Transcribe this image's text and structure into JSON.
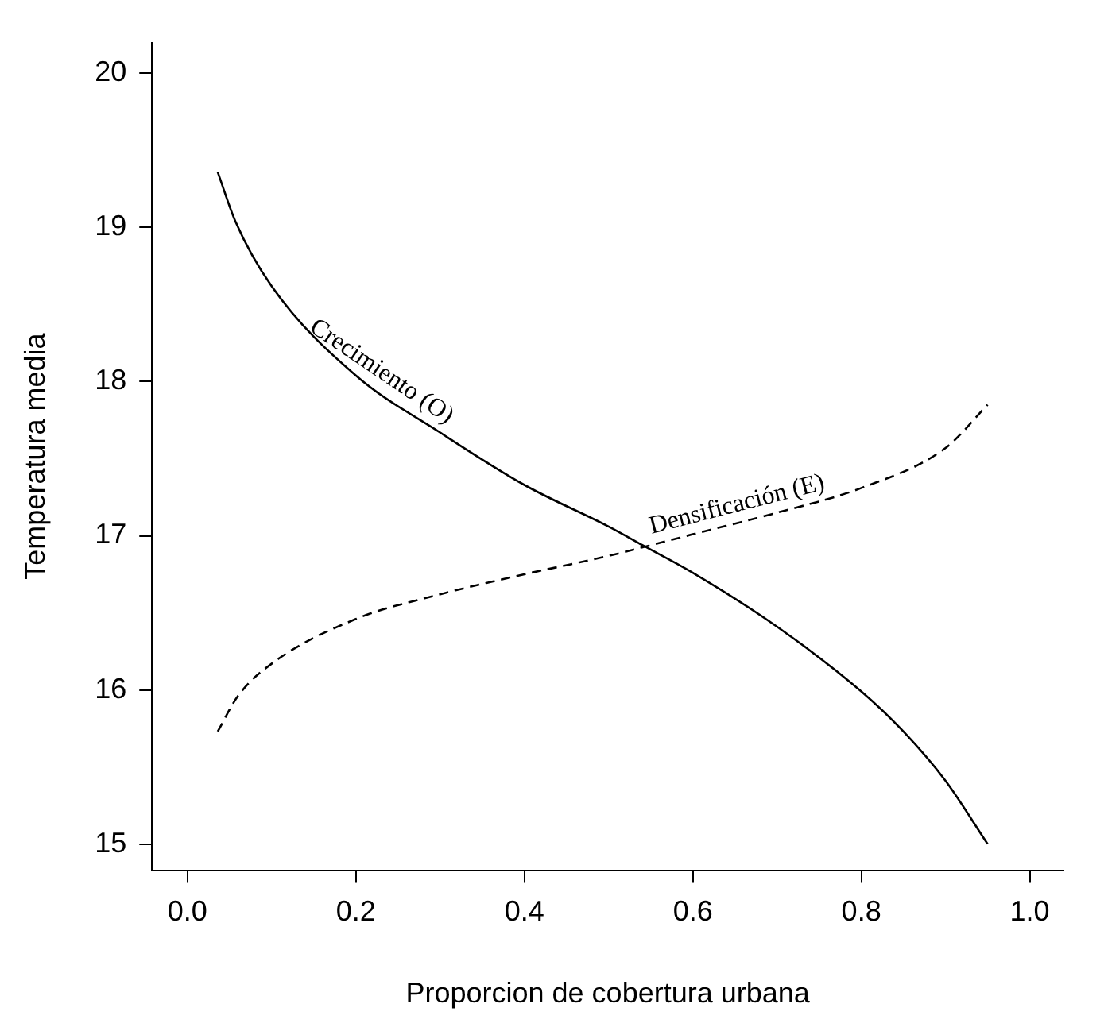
{
  "chart_data": {
    "type": "line",
    "xlabel": "Proporcion de cobertura urbana",
    "ylabel": "Temperatura media",
    "xlim": [
      -0.042,
      1.04
    ],
    "ylim": [
      14.83,
      20.2
    ],
    "xticks": [
      {
        "value": 0,
        "label": "0.0"
      },
      0.2,
      0.4,
      0.6,
      0.8,
      {
        "value": 1,
        "label": "1.0"
      }
    ],
    "yticks": [
      15,
      16,
      17,
      18,
      19,
      20
    ],
    "legend": false,
    "marker": "none",
    "series": [
      {
        "name": "Crecimiento (O)",
        "color": "#000000",
        "line_style": "solid",
        "x": [
          0.036,
          0.057,
          0.1,
          0.2,
          0.3,
          0.4,
          0.5,
          0.54,
          0.6,
          0.7,
          0.8,
          0.85,
          0.9,
          0.95
        ],
        "values": [
          19.36,
          19.04,
          18.62,
          18.04,
          17.67,
          17.33,
          17.06,
          16.94,
          16.76,
          16.41,
          15.99,
          15.73,
          15.41,
          15.0
        ]
      },
      {
        "name": "Densificación (E)",
        "color": "#000000",
        "line_style": "dashed",
        "x": [
          0.036,
          0.06,
          0.1,
          0.2,
          0.3,
          0.4,
          0.5,
          0.6,
          0.7,
          0.8,
          0.9,
          0.95
        ],
        "values": [
          15.73,
          15.96,
          16.17,
          16.46,
          16.62,
          16.75,
          16.87,
          17.01,
          17.15,
          17.31,
          17.57,
          17.85
        ]
      }
    ]
  }
}
